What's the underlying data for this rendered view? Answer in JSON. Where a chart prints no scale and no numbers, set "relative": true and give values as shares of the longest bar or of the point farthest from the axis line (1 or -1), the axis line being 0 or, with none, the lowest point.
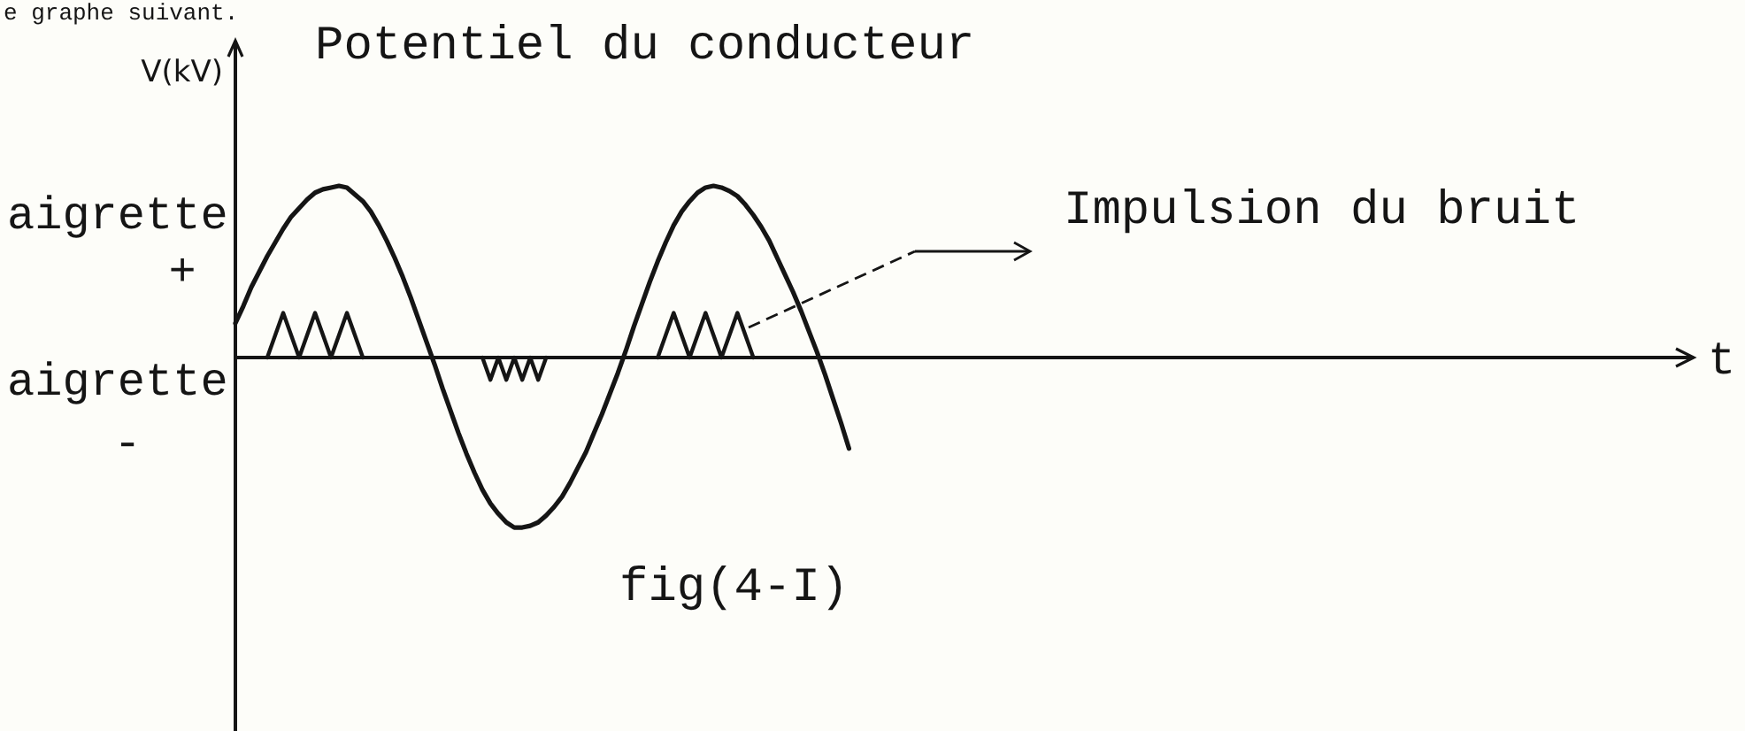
{
  "chart_data": {
    "type": "line",
    "title": "Potentiel du conducteur",
    "xlabel": "t",
    "ylabel": "V(kV)",
    "relative": true,
    "annotations": [
      "e graphe suivant.",
      "aigrette +",
      "aigrette -",
      "Impulsion du bruit",
      "fig(4-I)"
    ],
    "categories": [
      null,
      null,
      null,
      null,
      null,
      null,
      null,
      null,
      null,
      null,
      null,
      null,
      null,
      null,
      null,
      null,
      null,
      null,
      null,
      null,
      null,
      null,
      null,
      null,
      null,
      null,
      null,
      null,
      null,
      null,
      null,
      null,
      null,
      null,
      null,
      null,
      null,
      null,
      null,
      null,
      null,
      null,
      null,
      null,
      null,
      null,
      null,
      null,
      null,
      null,
      null,
      null,
      null,
      null,
      null,
      null,
      null,
      null,
      null,
      null,
      null,
      null,
      null,
      null,
      null,
      null,
      null,
      null,
      null,
      null,
      null,
      null,
      null,
      null,
      null,
      null,
      null,
      null,
      null,
      null,
      null,
      null,
      null,
      null,
      null,
      null,
      null,
      null,
      null,
      null,
      null,
      null,
      null,
      null,
      null,
      null,
      null,
      null,
      null,
      null,
      null,
      null,
      null,
      null,
      null,
      null,
      null,
      null,
      null,
      null,
      null,
      null,
      null,
      null,
      null,
      null,
      null,
      null,
      null,
      null,
      null,
      null,
      null,
      null,
      null,
      null,
      null,
      null,
      null,
      null,
      null,
      null,
      null,
      null,
      null,
      null,
      null,
      null,
      null,
      null,
      null,
      null,
      null,
      null,
      null,
      null,
      null,
      null,
      null,
      null,
      null,
      null,
      null,
      null,
      null,
      null,
      null,
      null,
      null,
      null,
      null,
      null,
      null,
      null,
      null,
      null,
      null,
      null,
      null,
      null,
      null,
      null,
      null,
      null,
      null,
      null,
      null,
      null,
      null,
      null,
      null,
      null,
      null,
      null
    ],
    "series": [
      {
        "color": "#151515",
        "values": [
          0.2,
          0.3,
          0.41,
          0.5,
          0.59,
          0.67,
          0.75,
          0.82,
          0.87,
          0.92,
          0.96,
          0.98,
          0.99,
          1,
          0.99,
          0.95,
          0.91,
          0.85,
          0.77,
          0.68,
          0.58,
          0.47,
          0.35,
          0.22,
          0.09,
          -0.04,
          -0.18,
          -0.31,
          -0.44,
          -0.56,
          -0.67,
          -0.77,
          -0.85,
          -0.91,
          -0.96,
          -0.99,
          -0.99,
          -0.98,
          -0.96,
          -0.92,
          -0.87,
          -0.81,
          -0.73,
          -0.64,
          -0.55,
          -0.44,
          -0.33,
          -0.21,
          -0.09,
          0.04,
          0.18,
          0.31,
          0.44,
          0.56,
          0.67,
          0.77,
          0.85,
          0.91,
          0.96,
          0.99,
          1,
          0.99,
          0.97,
          0.94,
          0.89,
          0.83,
          0.76,
          0.68,
          0.58,
          0.48,
          0.38,
          0.27,
          0.15,
          0.03,
          -0.1,
          -0.24,
          -0.38,
          -0.53,
          null,
          null,
          null,
          null,
          null,
          null,
          null,
          null,
          null,
          null,
          null,
          null,
          null,
          null,
          null,
          null,
          null,
          null,
          null,
          null,
          null,
          null,
          null,
          null,
          null,
          null,
          null,
          null,
          null,
          null,
          null,
          null,
          null,
          null,
          null,
          null,
          null,
          null,
          null,
          null,
          null,
          null,
          null,
          null,
          null,
          null,
          null,
          null,
          null,
          null,
          null,
          null,
          null,
          null,
          null,
          null,
          null,
          null,
          null,
          null,
          null,
          null,
          null,
          null,
          null,
          null,
          null,
          null,
          null,
          null,
          null,
          null,
          null,
          null,
          null,
          null,
          null,
          null,
          null,
          null,
          null,
          null,
          null,
          null,
          null,
          null,
          null,
          null,
          null,
          null,
          null,
          null,
          null,
          null,
          null,
          null,
          null,
          null,
          null,
          null,
          null,
          null,
          null,
          null,
          null,
          null
        ]
      },
      {
        "color": "#151515",
        "values": [
          null,
          null,
          null,
          null,
          0,
          0.13,
          0.26,
          0.13,
          0,
          0.13,
          0.26,
          0.13,
          0,
          0.13,
          0.26,
          0.13,
          0,
          null,
          null,
          null,
          null,
          null,
          null,
          null,
          null,
          null,
          null,
          null,
          null,
          null,
          null,
          0,
          -0.13,
          0,
          -0.13,
          0,
          -0.13,
          0,
          -0.13,
          0,
          null,
          null,
          null,
          null,
          null,
          null,
          null,
          null,
          null,
          null,
          null,
          null,
          null,
          0,
          0.13,
          0.26,
          0.13,
          0,
          0.13,
          0.26,
          0.13,
          0,
          0.13,
          0.26,
          0.13,
          0,
          null,
          null,
          null,
          null,
          null,
          null,
          null,
          null,
          null,
          null,
          null,
          null,
          null,
          null,
          null,
          null,
          null,
          null,
          null,
          null,
          null,
          null,
          null,
          null,
          null,
          null,
          null,
          null,
          null,
          null,
          null,
          null,
          null,
          null,
          null,
          null,
          null,
          null,
          null,
          null,
          null,
          null,
          null,
          null,
          null,
          null,
          null,
          null,
          null,
          null,
          null,
          null,
          null,
          null,
          null,
          null,
          null,
          null,
          null,
          null,
          null,
          null,
          null,
          null,
          null,
          null,
          null,
          null,
          null,
          null,
          null,
          null,
          null,
          null,
          null,
          null,
          null,
          null,
          null,
          null,
          null,
          null,
          null,
          null,
          null,
          null,
          null,
          null,
          null,
          null,
          null,
          null,
          null,
          null,
          null,
          null,
          null,
          null,
          null,
          null,
          null,
          null,
          null,
          null,
          null,
          null,
          null,
          null,
          null,
          null,
          null,
          null,
          null,
          null,
          null,
          null,
          null,
          null
        ]
      }
    ]
  }
}
